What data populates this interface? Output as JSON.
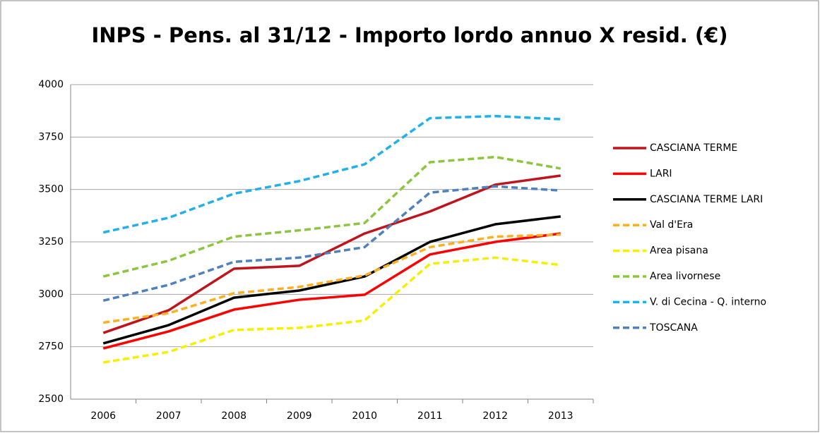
{
  "chart_data": {
    "type": "line",
    "title": "INPS - Pens. al 31/12 - Importo lordo annuo X resid. (€)",
    "categories": [
      "2006",
      "2007",
      "2008",
      "2009",
      "2010",
      "2011",
      "2012",
      "2013"
    ],
    "ylim": [
      2500,
      4000
    ],
    "yticks": [
      2500,
      2750,
      3000,
      3250,
      3500,
      3750,
      4000
    ],
    "grid": true,
    "legend": "right",
    "series": [
      {
        "name": "CASCIANA TERME",
        "color": "#c0141c",
        "dashed": false,
        "values": [
          2816,
          2924,
          3122,
          3136,
          3290,
          3395,
          3523,
          3566
        ]
      },
      {
        "name": "LARI",
        "color": "#ff0000",
        "dashed": false,
        "values": [
          2742,
          2823,
          2927,
          2974,
          2998,
          3190,
          3250,
          3290
        ]
      },
      {
        "name": "CASCIANA TERME LARI",
        "color": "#000000",
        "dashed": false,
        "values": [
          2766,
          2853,
          2984,
          3018,
          3085,
          3250,
          3334,
          3371
        ]
      },
      {
        "name": "Val d'Era",
        "color": "#ffb020",
        "dashed": true,
        "values": [
          2865,
          2910,
          3005,
          3035,
          3090,
          3225,
          3275,
          3285
        ]
      },
      {
        "name": "Area pisana",
        "color": "#f5f000",
        "dashed": true,
        "values": [
          2675,
          2725,
          2830,
          2840,
          2875,
          3145,
          3175,
          3140
        ]
      },
      {
        "name": "Area livornese",
        "color": "#8cc63e",
        "dashed": true,
        "values": [
          3085,
          3160,
          3275,
          3305,
          3340,
          3630,
          3655,
          3600
        ]
      },
      {
        "name": "V. di Cecina - Q. interno",
        "color": "#22b0ea",
        "dashed": true,
        "values": [
          3295,
          3365,
          3480,
          3540,
          3620,
          3840,
          3850,
          3835
        ]
      },
      {
        "name": "TOSCANA",
        "color": "#4f81bd",
        "dashed": true,
        "values": [
          2970,
          3045,
          3155,
          3175,
          3225,
          3485,
          3515,
          3495
        ]
      }
    ]
  }
}
